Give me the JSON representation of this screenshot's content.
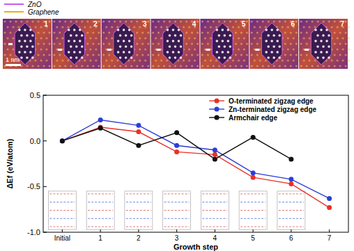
{
  "image_panel": {
    "legend": [
      {
        "name": "ZnO",
        "color": "#c85cf0"
      },
      {
        "name": "Graphene",
        "color": "#e8b020"
      }
    ],
    "frame_labels": [
      "1",
      "2",
      "3",
      "4",
      "5",
      "6",
      "7"
    ],
    "scale_bar": "1 nm"
  },
  "chart_data": {
    "type": "line",
    "x_label": "Growth step",
    "y_label": "ΔEf (eV/atom)",
    "categories": [
      "Initial",
      "1",
      "2",
      "3",
      "4",
      "5",
      "6",
      "7"
    ],
    "series": [
      {
        "name": "O-terminated zigzag edge",
        "color": "#e8312a",
        "marker": "circle",
        "values": [
          0,
          0.15,
          0.1,
          -0.12,
          -0.15,
          -0.4,
          -0.47,
          -0.73
        ]
      },
      {
        "name": "Zn-terminated zigzag edge",
        "color": "#2b3fd6",
        "marker": "circle",
        "values": [
          0,
          0.23,
          0.17,
          -0.05,
          -0.1,
          -0.35,
          -0.42,
          -0.63
        ]
      },
      {
        "name": "Armchair edge",
        "color": "#111111",
        "marker": "circle",
        "values": [
          0,
          0.14,
          -0.05,
          0.09,
          -0.2,
          0.04,
          -0.2,
          null
        ]
      }
    ],
    "ylim": [
      -1.0,
      0.5
    ],
    "yticks": [
      {
        "value": -1,
        "label": "-1.0"
      },
      -0.5,
      {
        "value": 0,
        "label": "0.0"
      },
      0.5
    ],
    "grid": false,
    "legend": "upper right"
  }
}
